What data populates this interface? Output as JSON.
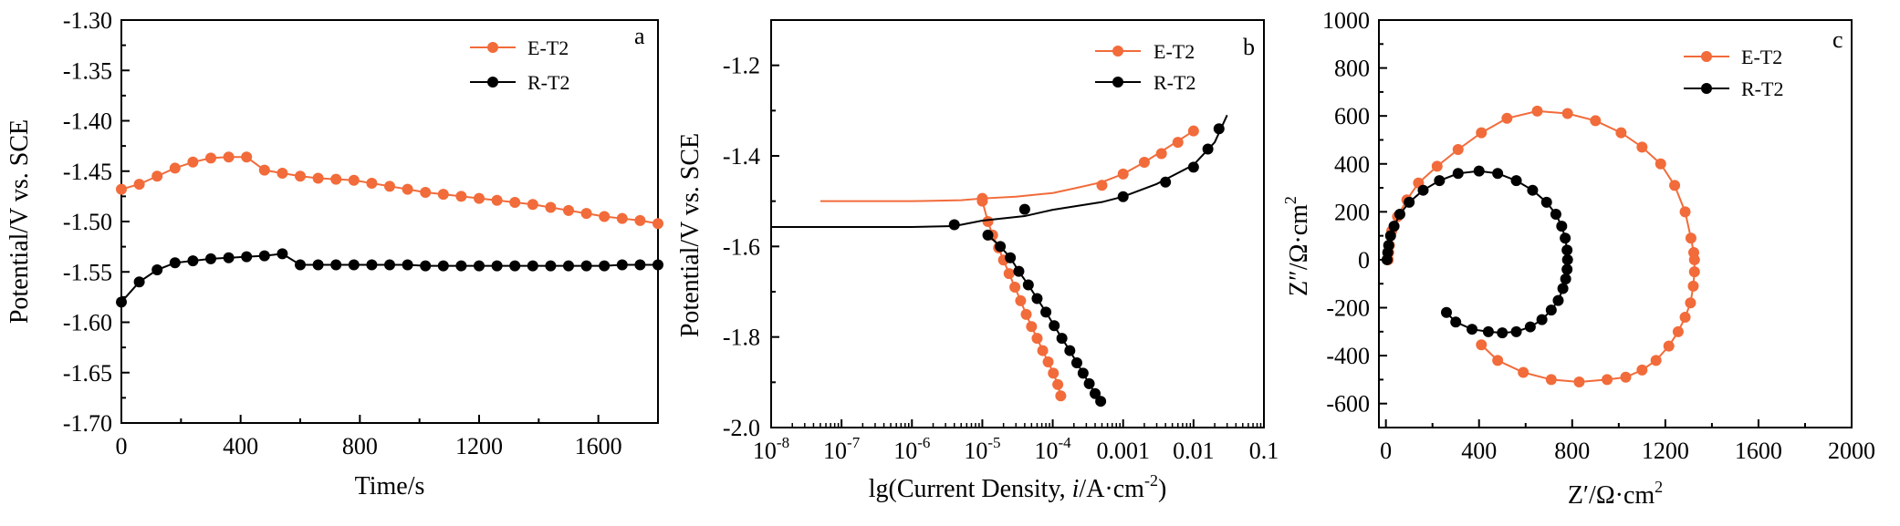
{
  "colors": {
    "E-T2": "#f26b3a",
    "R-T2": "#000000"
  },
  "chart_data": [
    {
      "type": "line",
      "panel_label": "a",
      "xlabel": "Time/s",
      "ylabel": "Potential/V vs. SCE",
      "xlim": [
        0,
        1800
      ],
      "ylim": [
        -1.7,
        -1.3
      ],
      "xticks": [
        "0",
        "400",
        "800",
        "1200",
        "1600"
      ],
      "yticks": [
        "-1.70",
        "-1.65",
        "-1.60",
        "-1.55",
        "-1.50",
        "-1.45",
        "-1.40",
        "-1.35",
        "-1.30"
      ],
      "legend": "top-right",
      "series": [
        {
          "name": "E-T2",
          "marker": "circle",
          "x": [
            0,
            60,
            120,
            180,
            240,
            300,
            360,
            420,
            480,
            540,
            600,
            660,
            720,
            780,
            840,
            900,
            960,
            1020,
            1080,
            1140,
            1200,
            1260,
            1320,
            1380,
            1440,
            1500,
            1560,
            1620,
            1680,
            1740,
            1800
          ],
          "y": [
            -1.468,
            -1.463,
            -1.455,
            -1.447,
            -1.441,
            -1.437,
            -1.436,
            -1.436,
            -1.449,
            -1.452,
            -1.455,
            -1.457,
            -1.458,
            -1.459,
            -1.462,
            -1.465,
            -1.468,
            -1.471,
            -1.473,
            -1.475,
            -1.477,
            -1.479,
            -1.481,
            -1.483,
            -1.486,
            -1.489,
            -1.492,
            -1.495,
            -1.497,
            -1.499,
            -1.502
          ]
        },
        {
          "name": "R-T2",
          "marker": "circle",
          "x": [
            0,
            60,
            120,
            180,
            240,
            300,
            360,
            420,
            480,
            540,
            600,
            660,
            720,
            780,
            840,
            900,
            960,
            1020,
            1080,
            1140,
            1200,
            1260,
            1320,
            1380,
            1440,
            1500,
            1560,
            1620,
            1680,
            1740,
            1800
          ],
          "y": [
            -1.58,
            -1.56,
            -1.548,
            -1.541,
            -1.539,
            -1.537,
            -1.536,
            -1.535,
            -1.534,
            -1.532,
            -1.543,
            -1.543,
            -1.543,
            -1.543,
            -1.543,
            -1.543,
            -1.543,
            -1.544,
            -1.544,
            -1.544,
            -1.544,
            -1.544,
            -1.544,
            -1.544,
            -1.544,
            -1.544,
            -1.544,
            -1.544,
            -1.543,
            -1.543,
            -1.543
          ]
        }
      ]
    },
    {
      "type": "line",
      "panel_label": "b",
      "xlabel_pre": "lg(Current Density, ",
      "xlabel_italic": "i",
      "xlabel_post": "/A·cm",
      "xlabel_sup": "-2",
      "xlabel_close": ")",
      "ylabel": "Potential/V vs. SCE",
      "xscale": "log",
      "xlim": [
        1e-08,
        0.1
      ],
      "ylim": [
        -2.0,
        -1.1
      ],
      "yticks": [
        "-2.0",
        "-1.8",
        "-1.6",
        "-1.4",
        "-1.2"
      ],
      "xticks": [
        {
          "base": "10",
          "exp": "-8"
        },
        {
          "base": "10",
          "exp": "-7"
        },
        {
          "base": "10",
          "exp": "-6"
        },
        {
          "base": "10",
          "exp": "-5"
        },
        {
          "base": "10",
          "exp": "-4"
        },
        {
          "base": "0.001",
          "exp": ""
        },
        {
          "base": "0.01",
          "exp": ""
        },
        {
          "base": "0.1",
          "exp": ""
        }
      ],
      "legend": "top-right",
      "series": [
        {
          "name": "E-T2",
          "line_x": [
            5e-08,
            1e-06,
            5e-06,
            1e-05,
            3e-05,
            0.0001,
            0.0002,
            0.0005,
            0.001,
            0.002,
            0.005,
            0.01
          ],
          "line_y": [
            -1.5,
            -1.5,
            -1.498,
            -1.494,
            -1.49,
            -1.482,
            -1.472,
            -1.458,
            -1.44,
            -1.414,
            -1.375,
            -1.345
          ],
          "marker_x": [
            1e-05,
            0.0005,
            0.001,
            0.002,
            0.0035,
            0.006,
            0.01
          ],
          "marker_y": [
            -1.494,
            -1.465,
            -1.44,
            -1.414,
            -1.395,
            -1.37,
            -1.345
          ],
          "cathodic_x": [
            1e-05,
            1.2e-05,
            1.4e-05,
            1.7e-05,
            2e-05,
            2.4e-05,
            2.9e-05,
            3.5e-05,
            4.2e-05,
            5e-05,
            6e-05,
            7.2e-05,
            8.6e-05,
            0.000102,
            0.000118,
            0.00013
          ],
          "cathodic_y": [
            -1.5,
            -1.545,
            -1.575,
            -1.603,
            -1.63,
            -1.66,
            -1.69,
            -1.72,
            -1.75,
            -1.777,
            -1.803,
            -1.83,
            -1.855,
            -1.88,
            -1.905,
            -1.93
          ]
        },
        {
          "name": "R-T2",
          "line_x": [
            1e-08,
            1e-07,
            1e-06,
            4e-06,
            1e-05,
            4e-05,
            0.0001,
            0.0005,
            0.001,
            0.003,
            0.01,
            0.02,
            0.03
          ],
          "line_y": [
            -1.557,
            -1.557,
            -1.557,
            -1.555,
            -1.543,
            -1.533,
            -1.519,
            -1.502,
            -1.49,
            -1.462,
            -1.42,
            -1.37,
            -1.31
          ],
          "marker_x": [
            4e-06,
            4e-05,
            0.001,
            0.004,
            0.01,
            0.016,
            0.023
          ],
          "marker_y": [
            -1.552,
            -1.518,
            -1.49,
            -1.458,
            -1.425,
            -1.385,
            -1.34
          ],
          "cathodic_x": [
            1.2e-05,
            1.8e-05,
            2.5e-05,
            3.3e-05,
            4.5e-05,
            6e-05,
            8e-05,
            0.000105,
            0.000135,
            0.000175,
            0.00022,
            0.00027,
            0.00033,
            0.0004,
            0.00048
          ],
          "cathodic_y": [
            -1.575,
            -1.6,
            -1.625,
            -1.655,
            -1.685,
            -1.715,
            -1.745,
            -1.775,
            -1.803,
            -1.83,
            -1.857,
            -1.88,
            -1.903,
            -1.925,
            -1.942
          ]
        }
      ]
    },
    {
      "type": "scatter",
      "panel_label": "c",
      "xlabel": "Z′/Ω·cm",
      "xlabel_sup": "2",
      "ylabel": "Z″/Ω·cm",
      "ylabel_sup": "2",
      "xlim": [
        -30,
        2000
      ],
      "ylim": [
        -700,
        1000
      ],
      "xticks": [
        "0",
        "400",
        "800",
        "1200",
        "1600",
        "2000"
      ],
      "yticks": [
        "-600",
        "-400",
        "-200",
        "0",
        "200",
        "400",
        "600",
        "800",
        "1000"
      ],
      "legend": "top-right",
      "series": [
        {
          "name": "E-T2",
          "x": [
            10,
            12,
            15,
            25,
            50,
            90,
            140,
            220,
            310,
            410,
            520,
            650,
            780,
            900,
            1010,
            1100,
            1180,
            1240,
            1285,
            1310,
            1322,
            1325,
            1325,
            1320,
            1308,
            1285,
            1255,
            1215,
            1160,
            1100,
            1030,
            950,
            830,
            710,
            590,
            480,
            410
          ],
          "y": [
            0,
            30,
            60,
            120,
            180,
            250,
            320,
            390,
            460,
            530,
            590,
            620,
            610,
            580,
            530,
            470,
            400,
            310,
            200,
            90,
            30,
            0,
            -50,
            -110,
            -180,
            -240,
            -300,
            -360,
            -420,
            -460,
            -490,
            -500,
            -510,
            -500,
            -470,
            -420,
            -355
          ]
        },
        {
          "name": "R-T2",
          "x": [
            5,
            8,
            12,
            20,
            35,
            60,
            100,
            160,
            230,
            310,
            400,
            480,
            560,
            630,
            690,
            730,
            755,
            770,
            778,
            780,
            778,
            772,
            760,
            740,
            710,
            670,
            620,
            560,
            500,
            440,
            370,
            300,
            260
          ],
          "y": [
            0,
            30,
            60,
            100,
            140,
            190,
            240,
            290,
            330,
            360,
            370,
            360,
            330,
            290,
            240,
            190,
            140,
            90,
            40,
            0,
            -40,
            -80,
            -120,
            -170,
            -210,
            -250,
            -280,
            -300,
            -305,
            -300,
            -290,
            -260,
            -220
          ]
        }
      ]
    }
  ]
}
